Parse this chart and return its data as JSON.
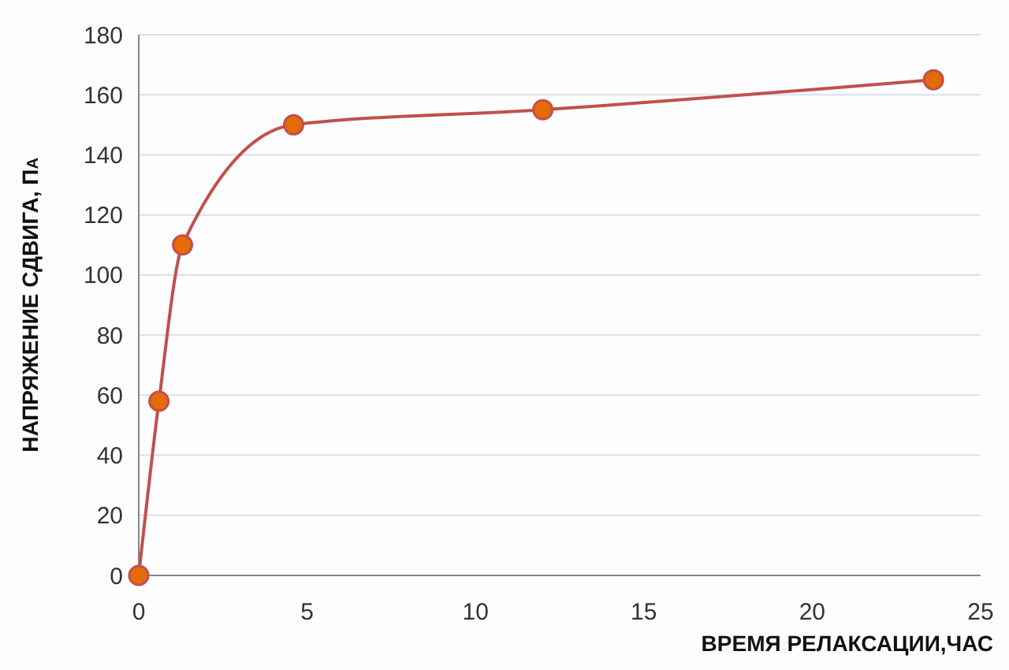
{
  "chart_data": {
    "type": "line",
    "xlabel": "ВРЕМЯ РЕЛАКСАЦИИ,ЧАС",
    "ylabel": "НАПРЯЖЕНИЕ СДВИГА, Па",
    "x": [
      0,
      0.6,
      1.3,
      4.6,
      12,
      23.6
    ],
    "series": [
      {
        "color": "#c0504d",
        "values": [
          0,
          58,
          110,
          150,
          155,
          165
        ]
      }
    ],
    "xlim": [
      0,
      25
    ],
    "xticks": [
      0,
      5,
      10,
      15,
      20,
      25
    ],
    "ylim": [
      0,
      180
    ],
    "yticks": [
      0,
      20,
      40,
      60,
      80,
      100,
      120,
      140,
      160,
      180
    ],
    "grid": "y",
    "marker": "circle",
    "line_style": "solid"
  }
}
